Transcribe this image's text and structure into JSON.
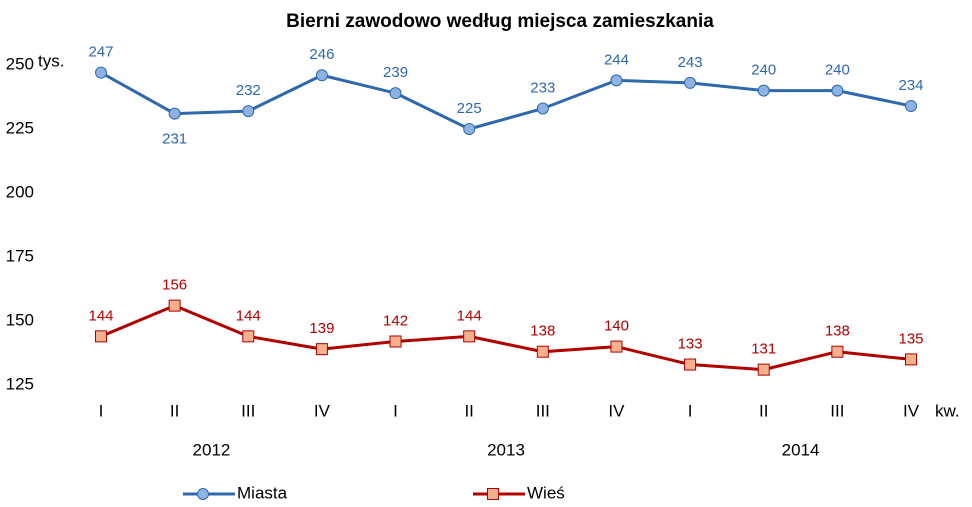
{
  "chart_data": {
    "type": "line",
    "title": "Bierni zawodowo według miejsca zamieszkania",
    "y_unit": "tys.",
    "x_unit": "kw.",
    "categories": [
      "I",
      "II",
      "III",
      "IV",
      "I",
      "II",
      "III",
      "IV",
      "I",
      "II",
      "III",
      "IV"
    ],
    "groups": [
      "2012",
      "2013",
      "2014"
    ],
    "series": [
      {
        "name": "Miasta",
        "color": "#2e68ad",
        "marker": "circle",
        "marker_color": "#8db3e2",
        "values": [
          247,
          231,
          232,
          246,
          239,
          225,
          233,
          244,
          243,
          240,
          240,
          234
        ]
      },
      {
        "name": "Wieś",
        "color": "#b00000",
        "marker": "square",
        "marker_color": "#f7b08e",
        "values": [
          144,
          156,
          144,
          139,
          142,
          144,
          138,
          140,
          133,
          131,
          138,
          135
        ]
      }
    ],
    "ylim": [
      125,
      250
    ],
    "yticks": [
      125,
      150,
      175,
      200,
      225,
      250
    ],
    "grid": false,
    "legend": "bottom"
  }
}
